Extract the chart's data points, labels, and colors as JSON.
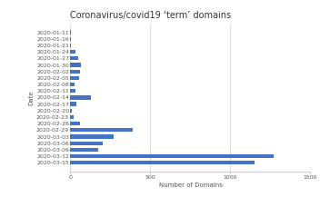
{
  "title": "Coronavirus/covid19 ‘term’ domains",
  "xlabel": "Number of Domains",
  "ylabel": "Date",
  "categories": [
    "2020-01-11",
    "2020-01-16",
    "2020-01-21",
    "2020-01-24",
    "2020-01-27",
    "2020-01-30",
    "2020-02-02",
    "2020-02-05",
    "2020-02-08",
    "2020-02-11",
    "2020-02-14",
    "2020-02-17",
    "2020-02-20",
    "2020-02-23",
    "2020-02-26",
    "2020-02-29",
    "2020-03-03",
    "2020-03-06",
    "2020-03-09",
    "2020-03-12",
    "2020-03-15"
  ],
  "values": [
    2,
    2,
    3,
    30,
    50,
    65,
    60,
    55,
    28,
    32,
    130,
    35,
    8,
    18,
    60,
    390,
    270,
    200,
    175,
    1270,
    1150
  ],
  "bar_color": "#4472c4",
  "xlim": [
    0,
    1500
  ],
  "xticks": [
    0,
    500,
    1000,
    1500
  ],
  "grid_color": "#cccccc",
  "title_fontsize": 7,
  "label_fontsize": 5,
  "tick_fontsize": 4.5
}
